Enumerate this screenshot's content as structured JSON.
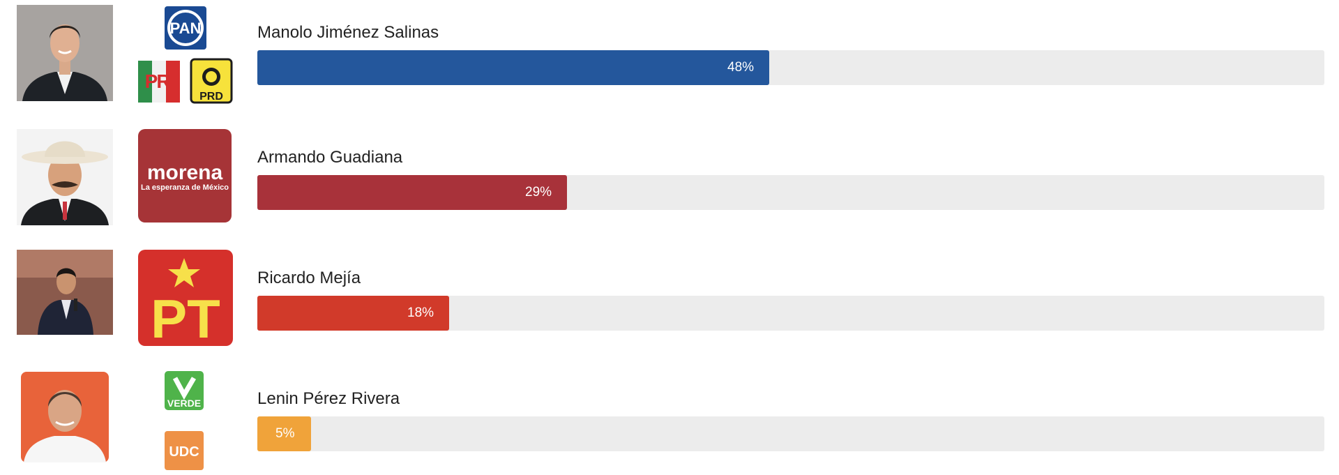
{
  "chart_data": {
    "type": "bar",
    "orientation": "horizontal",
    "categories": [
      "Manolo Jiménez Salinas",
      "Armando Guadiana",
      "Ricardo Mejía",
      "Lenin Pérez Rivera"
    ],
    "values": [
      48,
      29,
      18,
      5
    ],
    "value_labels": [
      "48%",
      "29%",
      "18%",
      "5%"
    ],
    "xlim": [
      0,
      100
    ],
    "colors": [
      "#24579c",
      "#a8323a",
      "#d13a2a",
      "#f0a33a"
    ],
    "track_color": "#ececec"
  },
  "candidates": [
    {
      "name": "Manolo Jiménez Salinas",
      "value": 48,
      "label": "48%",
      "color": "#24579c",
      "parties": [
        {
          "logo": "pan-logo",
          "text": "PAN"
        },
        {
          "logo": "pri-logo",
          "text": "PRI"
        },
        {
          "logo": "prd-logo",
          "text": "PRD"
        }
      ]
    },
    {
      "name": "Armando Guadiana",
      "value": 29,
      "label": "29%",
      "color": "#a8323a",
      "parties": [
        {
          "logo": "morena-logo",
          "text": "morena",
          "subtext": "La esperanza de México"
        }
      ]
    },
    {
      "name": "Ricardo Mejía",
      "value": 18,
      "label": "18%",
      "color": "#d13a2a",
      "parties": [
        {
          "logo": "pt-logo",
          "text": "PT"
        }
      ]
    },
    {
      "name": "Lenin Pérez Rivera",
      "value": 5,
      "label": "5%",
      "color": "#f0a33a",
      "parties": [
        {
          "logo": "verde-logo",
          "text": "VERDE"
        },
        {
          "logo": "udc-logo",
          "text": "UDC"
        }
      ]
    }
  ]
}
